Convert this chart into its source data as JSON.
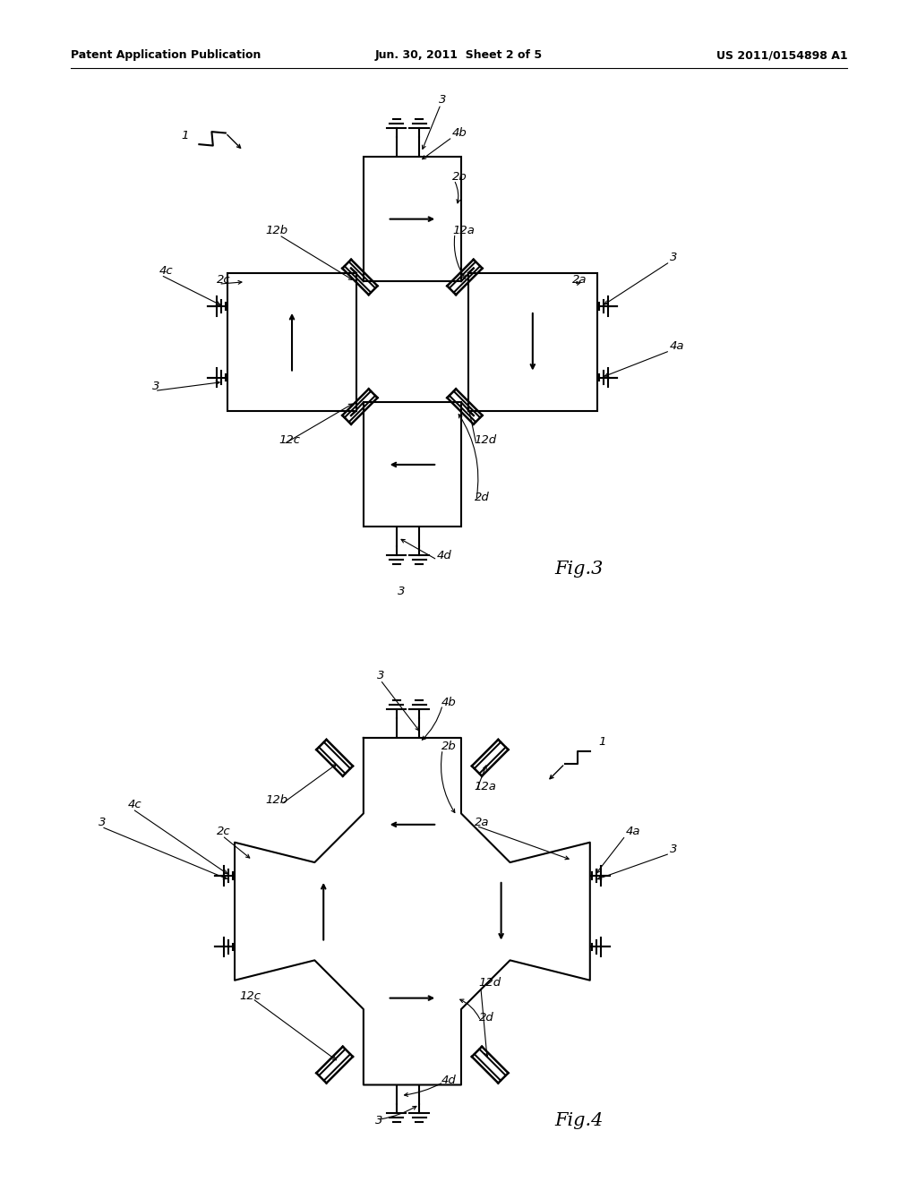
{
  "fig_width": 10.24,
  "fig_height": 13.2,
  "bg_color": "#ffffff",
  "header_left": "Patent Application Publication",
  "header_center": "Jun. 30, 2011  Sheet 2 of 5",
  "header_right": "US 2011/0154898 A1",
  "lw": 1.5,
  "gs": 0.018
}
